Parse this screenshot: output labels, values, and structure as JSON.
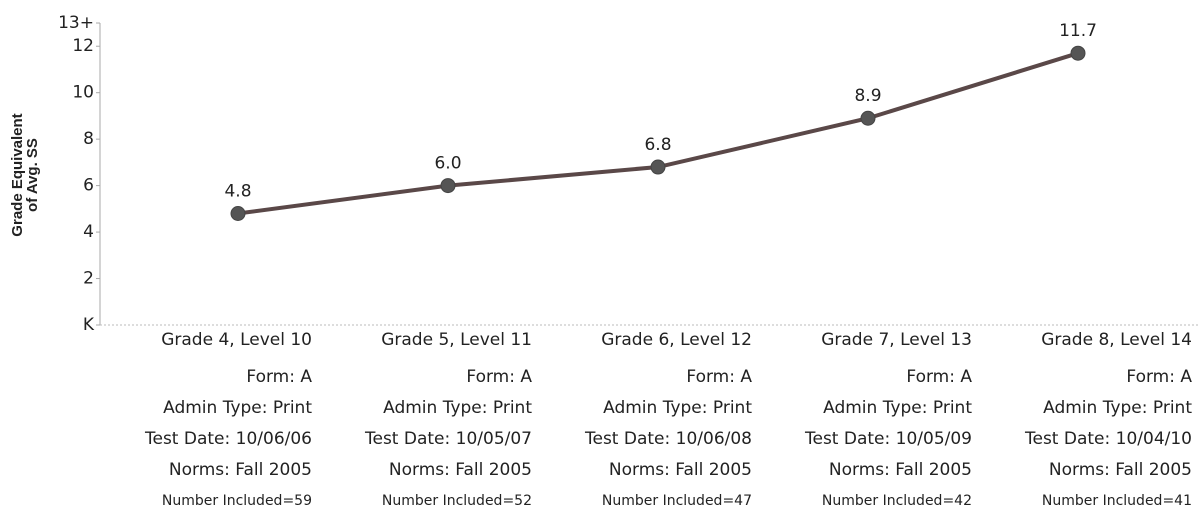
{
  "chart_data": {
    "type": "line",
    "ylabel": [
      "Grade Equivalent",
      "of Avg. SS"
    ],
    "categories": [
      "Grade 4, Level 10",
      "Grade 5, Level 11",
      "Grade 6, Level 12",
      "Grade 7, Level 13",
      "Grade 8, Level 14"
    ],
    "category_lines": [
      [
        "Form: A",
        "Admin Type: Print",
        "Test Date: 10/06/06",
        "Norms: Fall 2005",
        "Number Included=59"
      ],
      [
        "Form: A",
        "Admin Type: Print",
        "Test Date: 10/05/07",
        "Norms: Fall 2005",
        "Number Included=52"
      ],
      [
        "Form: A",
        "Admin Type: Print",
        "Test Date: 10/06/08",
        "Norms: Fall 2005",
        "Number Included=47"
      ],
      [
        "Form: A",
        "Admin Type: Print",
        "Test Date: 10/05/09",
        "Norms: Fall 2005",
        "Number Included=42"
      ],
      [
        "Form: A",
        "Admin Type: Print",
        "Test Date: 10/04/10",
        "Norms: Fall 2005",
        "Number Included=41"
      ]
    ],
    "values": [
      4.8,
      6.0,
      6.8,
      8.9,
      11.7
    ],
    "value_labels": [
      "4.8",
      "6.0",
      "6.8",
      "8.9",
      "11.7"
    ],
    "color": "#5a4848",
    "ylim": [
      0,
      13
    ],
    "yticks": [
      {
        "value": 0,
        "label": "K"
      },
      2,
      4,
      6,
      8,
      10,
      12,
      {
        "value": 13,
        "label": "13+"
      }
    ]
  }
}
